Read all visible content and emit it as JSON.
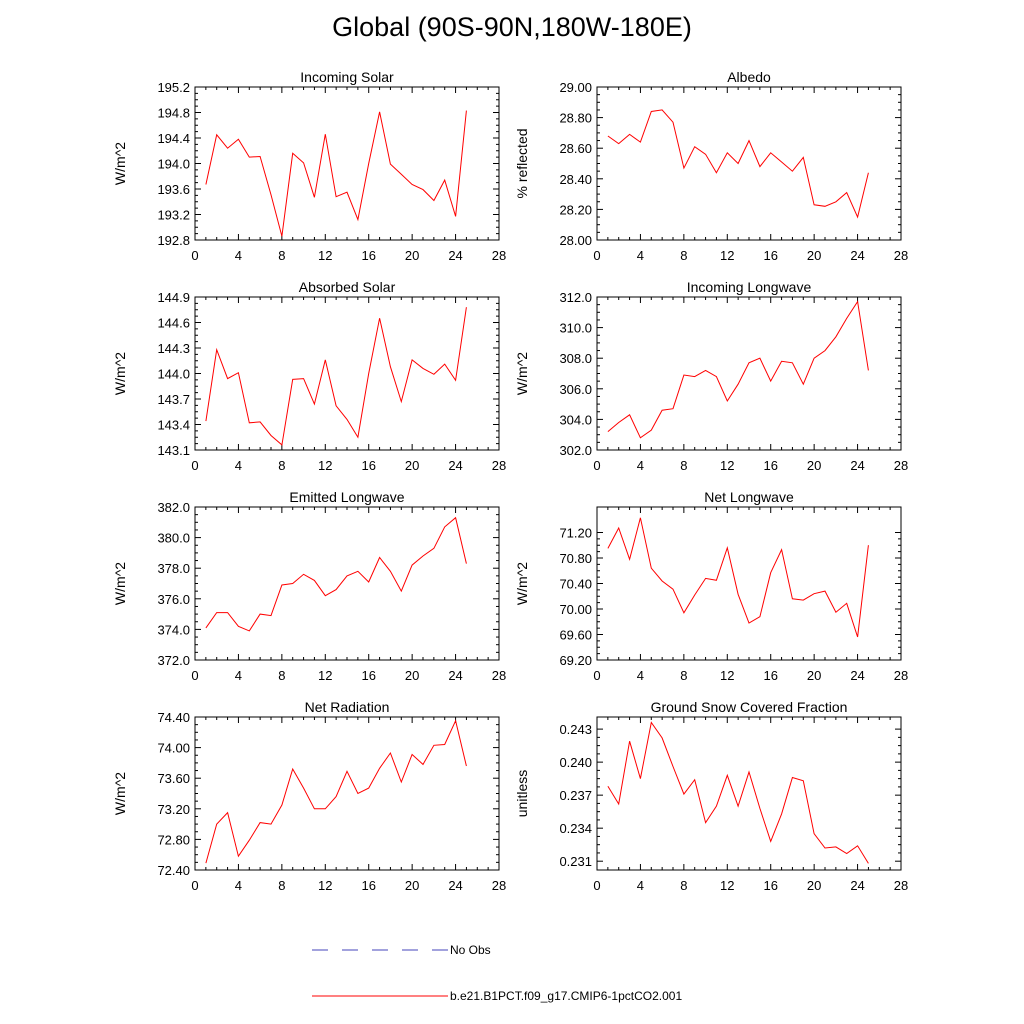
{
  "title": "Global (90S-90N,180W-180E)",
  "legend": {
    "obs_label": "No Obs",
    "obs_color": "#4444bb",
    "model_label": "b.e21.B1PCT.f09_g17.CMIP6-1pctCO2.001",
    "model_color": "#ff0000"
  },
  "chart_data": [
    {
      "type": "line",
      "title": "Incoming Solar",
      "ylabel": "W/m^2",
      "xlim": [
        0,
        28
      ],
      "xticks": [
        0,
        4,
        8,
        12,
        16,
        20,
        24,
        28
      ],
      "ylim": [
        192.8,
        195.2
      ],
      "yticks": [
        "192.8",
        "193.2",
        "193.6",
        "194.0",
        "194.4",
        "194.8",
        "195.2"
      ],
      "x": [
        1,
        2,
        3,
        4,
        5,
        6,
        7,
        8,
        9,
        10,
        11,
        12,
        13,
        14,
        15,
        16,
        17,
        18,
        19,
        20,
        21,
        22,
        23,
        24,
        25
      ],
      "series": [
        {
          "values": [
            193.67,
            194.45,
            194.24,
            194.38,
            194.1,
            194.11,
            193.51,
            192.86,
            194.16,
            194.01,
            193.47,
            194.46,
            193.48,
            193.55,
            193.12,
            194.0,
            194.81,
            193.99,
            193.83,
            193.67,
            193.59,
            193.42,
            193.74,
            193.17,
            194.83
          ]
        }
      ]
    },
    {
      "type": "line",
      "title": "Albedo",
      "ylabel": "% reflected",
      "xlim": [
        0,
        28
      ],
      "xticks": [
        0,
        4,
        8,
        12,
        16,
        20,
        24,
        28
      ],
      "ylim": [
        28.0,
        29.0
      ],
      "yticks": [
        "28.00",
        "28.20",
        "28.40",
        "28.60",
        "28.80",
        "29.00"
      ],
      "x": [
        1,
        2,
        3,
        4,
        5,
        6,
        7,
        8,
        9,
        10,
        11,
        12,
        13,
        14,
        15,
        16,
        17,
        18,
        19,
        20,
        21,
        22,
        23,
        24,
        25
      ],
      "series": [
        {
          "values": [
            28.68,
            28.63,
            28.69,
            28.64,
            28.84,
            28.85,
            28.77,
            28.47,
            28.61,
            28.56,
            28.44,
            28.57,
            28.5,
            28.65,
            28.48,
            28.57,
            28.51,
            28.45,
            28.54,
            28.23,
            28.22,
            28.25,
            28.31,
            28.15,
            28.44
          ]
        }
      ]
    },
    {
      "type": "line",
      "title": "Absorbed Solar",
      "ylabel": "W/m^2",
      "xlim": [
        0,
        28
      ],
      "xticks": [
        0,
        4,
        8,
        12,
        16,
        20,
        24,
        28
      ],
      "ylim": [
        143.1,
        144.9
      ],
      "yticks": [
        "143.1",
        "143.4",
        "143.7",
        "144.0",
        "144.3",
        "144.6",
        "144.9"
      ],
      "x": [
        1,
        2,
        3,
        4,
        5,
        6,
        7,
        8,
        9,
        10,
        11,
        12,
        13,
        14,
        15,
        16,
        17,
        18,
        19,
        20,
        21,
        22,
        23,
        24,
        25
      ],
      "series": [
        {
          "values": [
            143.44,
            144.28,
            143.94,
            144.01,
            143.42,
            143.43,
            143.27,
            143.16,
            143.93,
            143.94,
            143.64,
            144.16,
            143.62,
            143.46,
            143.25,
            144.0,
            144.65,
            144.08,
            143.67,
            144.16,
            144.06,
            143.99,
            144.11,
            143.92,
            144.78
          ]
        }
      ]
    },
    {
      "type": "line",
      "title": "Incoming Longwave",
      "ylabel": "W/m^2",
      "xlim": [
        0,
        28
      ],
      "xticks": [
        0,
        4,
        8,
        12,
        16,
        20,
        24,
        28
      ],
      "ylim": [
        302.0,
        312.0
      ],
      "yticks": [
        "302.0",
        "304.0",
        "306.0",
        "308.0",
        "310.0",
        "312.0"
      ],
      "x": [
        1,
        2,
        3,
        4,
        5,
        6,
        7,
        8,
        9,
        10,
        11,
        12,
        13,
        14,
        15,
        16,
        17,
        18,
        19,
        20,
        21,
        22,
        23,
        24,
        25
      ],
      "series": [
        {
          "values": [
            303.2,
            303.8,
            304.3,
            302.8,
            303.3,
            304.6,
            304.7,
            306.9,
            306.8,
            307.2,
            306.8,
            305.2,
            306.3,
            307.7,
            308.0,
            306.5,
            307.8,
            307.7,
            306.3,
            308.0,
            308.5,
            309.4,
            310.6,
            311.7,
            307.2
          ]
        }
      ]
    },
    {
      "type": "line",
      "title": "Emitted Longwave",
      "ylabel": "W/m^2",
      "xlim": [
        0,
        28
      ],
      "xticks": [
        0,
        4,
        8,
        12,
        16,
        20,
        24,
        28
      ],
      "ylim": [
        372.0,
        382.0
      ],
      "yticks": [
        "372.0",
        "374.0",
        "376.0",
        "378.0",
        "380.0",
        "382.0"
      ],
      "x": [
        1,
        2,
        3,
        4,
        5,
        6,
        7,
        8,
        9,
        10,
        11,
        12,
        13,
        14,
        15,
        16,
        17,
        18,
        19,
        20,
        21,
        22,
        23,
        24,
        25
      ],
      "series": [
        {
          "values": [
            374.1,
            375.1,
            375.1,
            374.2,
            373.9,
            375.0,
            374.9,
            376.9,
            377.0,
            377.6,
            377.2,
            376.2,
            376.6,
            377.5,
            377.8,
            377.1,
            378.7,
            377.8,
            376.5,
            378.2,
            378.8,
            379.3,
            380.7,
            381.3,
            378.3
          ]
        }
      ]
    },
    {
      "type": "line",
      "title": "Net Longwave",
      "ylabel": "W/m^2",
      "xlim": [
        0,
        28
      ],
      "xticks": [
        0,
        4,
        8,
        12,
        16,
        20,
        24,
        28
      ],
      "ylim": [
        69.2,
        71.6
      ],
      "yticks": [
        "69.20",
        "69.60",
        "70.00",
        "70.40",
        "70.80",
        "71.20"
      ],
      "ytick_values": [
        69.2,
        69.6,
        70.0,
        70.4,
        70.8,
        71.2
      ],
      "x": [
        1,
        2,
        3,
        4,
        5,
        6,
        7,
        8,
        9,
        10,
        11,
        12,
        13,
        14,
        15,
        16,
        17,
        18,
        19,
        20,
        21,
        22,
        23,
        24,
        25
      ],
      "series": [
        {
          "values": [
            70.95,
            71.27,
            70.78,
            71.43,
            70.64,
            70.44,
            70.31,
            69.94,
            70.22,
            70.48,
            70.45,
            70.96,
            70.23,
            69.78,
            69.88,
            70.57,
            70.93,
            70.16,
            70.14,
            70.24,
            70.28,
            69.95,
            70.09,
            69.56,
            71.0
          ]
        }
      ]
    },
    {
      "type": "line",
      "title": "Net Radiation",
      "ylabel": "W/m^2",
      "xlim": [
        0,
        28
      ],
      "xticks": [
        0,
        4,
        8,
        12,
        16,
        20,
        24,
        28
      ],
      "ylim": [
        72.4,
        74.4
      ],
      "yticks": [
        "72.40",
        "72.80",
        "73.20",
        "73.60",
        "74.00",
        "74.40"
      ],
      "x": [
        1,
        2,
        3,
        4,
        5,
        6,
        7,
        8,
        9,
        10,
        11,
        12,
        13,
        14,
        15,
        16,
        17,
        18,
        19,
        20,
        21,
        22,
        23,
        24,
        25
      ],
      "series": [
        {
          "values": [
            72.49,
            73.0,
            73.15,
            72.58,
            72.79,
            73.02,
            73.0,
            73.25,
            73.72,
            73.47,
            73.2,
            73.2,
            73.36,
            73.69,
            73.4,
            73.47,
            73.73,
            73.93,
            73.55,
            73.91,
            73.78,
            74.03,
            74.04,
            74.35,
            73.76
          ]
        }
      ]
    },
    {
      "type": "line",
      "title": "Ground Snow Covered Fraction",
      "ylabel": "unitless",
      "xlim": [
        0,
        28
      ],
      "xticks": [
        0,
        4,
        8,
        12,
        16,
        20,
        24,
        28
      ],
      "ylim": [
        0.2302,
        0.2441
      ],
      "yticks": [
        "0.231",
        "0.234",
        "0.237",
        "0.240",
        "0.243"
      ],
      "ytick_values": [
        0.231,
        0.234,
        0.237,
        0.24,
        0.243
      ],
      "x": [
        1,
        2,
        3,
        4,
        5,
        6,
        7,
        8,
        9,
        10,
        11,
        12,
        13,
        14,
        15,
        16,
        17,
        18,
        19,
        20,
        21,
        22,
        23,
        24,
        25
      ],
      "series": [
        {
          "values": [
            0.2378,
            0.2362,
            0.2419,
            0.2385,
            0.2436,
            0.2422,
            0.2396,
            0.2371,
            0.2384,
            0.2345,
            0.236,
            0.2388,
            0.236,
            0.2391,
            0.2358,
            0.2328,
            0.2353,
            0.2386,
            0.2383,
            0.2335,
            0.2322,
            0.2323,
            0.2317,
            0.2324,
            0.2308
          ]
        }
      ]
    }
  ]
}
